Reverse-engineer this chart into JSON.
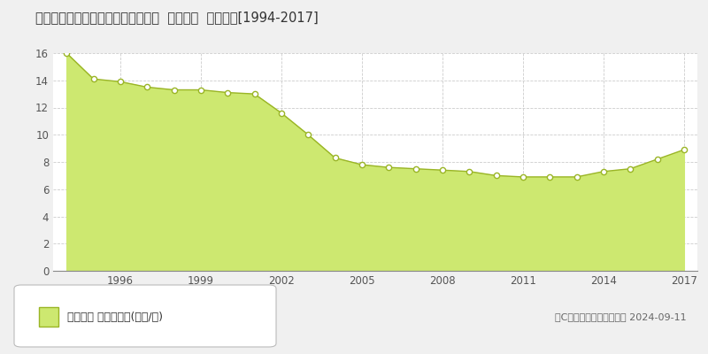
{
  "title": "沖縄県糸満市西崎町５丁目８番７外  地価公示  地価推移[1994-2017]",
  "years": [
    1994,
    1995,
    1996,
    1997,
    1998,
    1999,
    2000,
    2001,
    2002,
    2003,
    2004,
    2005,
    2006,
    2007,
    2008,
    2009,
    2010,
    2011,
    2012,
    2013,
    2014,
    2015,
    2016,
    2017
  ],
  "values": [
    16.0,
    14.1,
    13.9,
    13.5,
    13.3,
    13.3,
    13.1,
    13.0,
    11.6,
    10.0,
    8.3,
    7.8,
    7.6,
    7.5,
    7.4,
    7.3,
    7.0,
    6.9,
    6.9,
    6.9,
    7.3,
    7.5,
    8.2,
    8.9
  ],
  "fill_color": "#cde870",
  "line_color": "#9ab526",
  "marker_facecolor": "#ffffff",
  "marker_edgecolor": "#9ab526",
  "grid_color": "#cccccc",
  "background_color": "#f0f0f0",
  "plot_background": "#ffffff",
  "ylim": [
    0,
    16
  ],
  "yticks": [
    0,
    2,
    4,
    6,
    8,
    10,
    12,
    14,
    16
  ],
  "xticks": [
    1996,
    1999,
    2002,
    2005,
    2008,
    2011,
    2014,
    2017
  ],
  "legend_label": "地価公示 平均坊単価(万円/坊)",
  "copyright_text": "（C）土地価格ドットコム 2024-09-11"
}
